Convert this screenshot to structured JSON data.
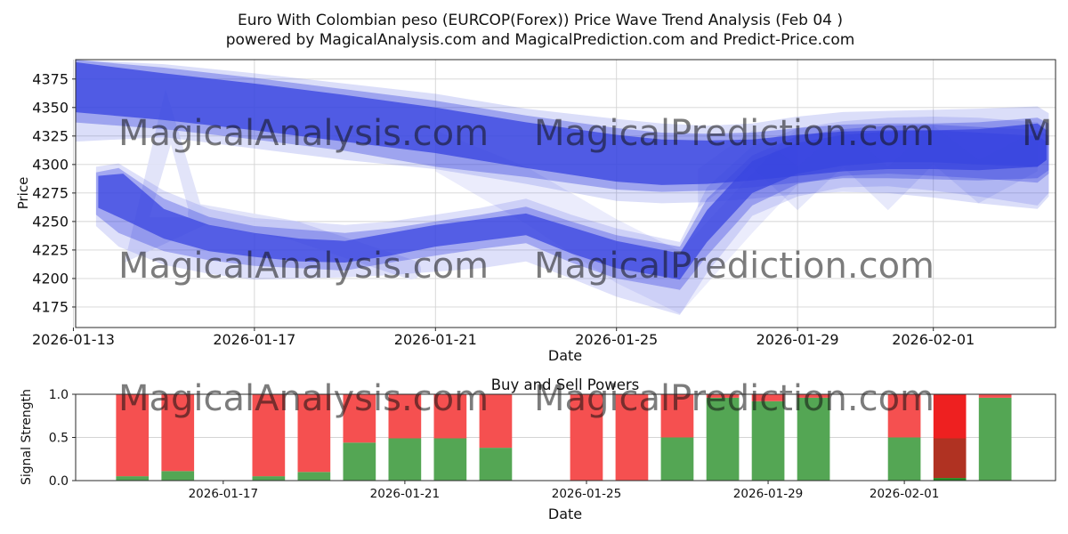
{
  "figure": {
    "background": "#ffffff"
  },
  "title": {
    "line1": "Euro With Colombian peso (EURCOP(Forex)) Price Wave Trend Analysis (Feb 04 )",
    "line2": "powered by MagicalAnalysis.com and MagicalPrediction.com and Predict-Price.com"
  },
  "watermark": {
    "color": "#cac7c7",
    "opacity": 0.55,
    "logo_color": "#dfe1f8",
    "rows": [
      {
        "row": "price_row_1",
        "items": [
          {
            "text": "MagicalAnalysis.com",
            "col": 0
          },
          {
            "text": "MagicalPrediction.com",
            "col": 1
          },
          {
            "text": "M",
            "col": 2
          }
        ]
      },
      {
        "row": "price_row_2",
        "items": [
          {
            "text": "MagicalAnalysis.com",
            "col": 0
          },
          {
            "text": "MagicalPrediction.com",
            "col": 1
          }
        ]
      },
      {
        "row": "signal_row",
        "items": [
          {
            "text": "MagicalAnalysis.com",
            "col": 0
          },
          {
            "text": "MagicalPrediction.com",
            "col": 1
          }
        ]
      }
    ]
  },
  "chart_data": [
    {
      "type": "area",
      "name": "price-wave-trend",
      "title": "",
      "xlabel": "Date",
      "ylabel": "Price",
      "start_date": "2026-01-13",
      "ylim": [
        4157,
        4392
      ],
      "xlim_days": [
        0.05,
        21.7
      ],
      "yticks": [
        4375,
        4350,
        4325,
        4300,
        4275,
        4250,
        4225,
        4200,
        4175
      ],
      "xticks": [
        "2026-01-13",
        "2026-01-17",
        "2026-01-21",
        "2026-01-25",
        "2026-01-29",
        "2026-02-01"
      ],
      "grid": "both",
      "band_color": "#3a46e0",
      "bands": [
        {
          "name": "upper-envelope",
          "opacity": 0.18,
          "points": [
            [
              0,
              4392,
              4320
            ],
            [
              2,
              4388,
              4324
            ],
            [
              4,
              4380,
              4314
            ],
            [
              6,
              4371,
              4304
            ],
            [
              8,
              4362,
              4296
            ],
            [
              10,
              4349,
              4283
            ],
            [
              12,
              4340,
              4268
            ],
            [
              13,
              4336,
              4266
            ],
            [
              14,
              4334,
              4267
            ],
            [
              15,
              4336,
              4270
            ],
            [
              16,
              4342,
              4274
            ],
            [
              17,
              4346,
              4276
            ],
            [
              18,
              4347,
              4275
            ],
            [
              19,
              4348,
              4271
            ],
            [
              20,
              4349,
              4266
            ],
            [
              21.3,
              4351,
              4261
            ],
            [
              21.55,
              4345,
              4272
            ]
          ]
        },
        {
          "name": "upper-mid",
          "opacity": 0.38,
          "points": [
            [
              0,
              4392,
              4337
            ],
            [
              2,
              4385,
              4331
            ],
            [
              4,
              4376,
              4322
            ],
            [
              6,
              4366,
              4312
            ],
            [
              8,
              4356,
              4298
            ],
            [
              10,
              4343,
              4289
            ],
            [
              12,
              4332,
              4278
            ],
            [
              13,
              4328,
              4276
            ],
            [
              14,
              4327,
              4277
            ],
            [
              15,
              4328,
              4280
            ],
            [
              16,
              4332,
              4284
            ],
            [
              17,
              4335,
              4288
            ],
            [
              18,
              4336,
              4288
            ],
            [
              19,
              4336,
              4287
            ],
            [
              20,
              4337,
              4286
            ],
            [
              21.3,
              4341,
              4288
            ],
            [
              21.55,
              4336,
              4295
            ]
          ]
        },
        {
          "name": "upper-core",
          "opacity": 0.78,
          "points": [
            [
              0,
              4390,
              4346
            ],
            [
              2,
              4380,
              4339
            ],
            [
              4,
              4371,
              4330
            ],
            [
              6,
              4361,
              4320
            ],
            [
              8,
              4350,
              4310
            ],
            [
              10,
              4337,
              4297
            ],
            [
              12,
              4326,
              4285
            ],
            [
              13,
              4322,
              4282
            ],
            [
              14,
              4321,
              4283
            ],
            [
              15,
              4322,
              4286
            ],
            [
              16,
              4326,
              4290
            ],
            [
              17,
              4329,
              4294
            ],
            [
              18,
              4330,
              4296
            ],
            [
              19,
              4330,
              4296
            ],
            [
              20,
              4331,
              4295
            ],
            [
              21.3,
              4336,
              4298
            ],
            [
              21.5,
              4330,
              4304
            ]
          ]
        },
        {
          "name": "lower-envelope",
          "opacity": 0.17,
          "points": [
            [
              0.5,
              4298,
              4246
            ],
            [
              1,
              4301,
              4228
            ],
            [
              2,
              4277,
              4212
            ],
            [
              3,
              4261,
              4204
            ],
            [
              4,
              4253,
              4199
            ],
            [
              6,
              4247,
              4201
            ],
            [
              7,
              4250,
              4203
            ],
            [
              9,
              4262,
              4209
            ],
            [
              10,
              4270,
              4215
            ],
            [
              11,
              4256,
              4200
            ],
            [
              12,
              4244,
              4184
            ],
            [
              13.4,
              4232,
              4168
            ],
            [
              14,
              4280,
              4205
            ],
            [
              15,
              4316,
              4255
            ],
            [
              16,
              4332,
              4272
            ],
            [
              17,
              4338,
              4280
            ],
            [
              18,
              4341,
              4281
            ],
            [
              19,
              4342,
              4277
            ],
            [
              20,
              4341,
              4272
            ],
            [
              21.3,
              4337,
              4264
            ],
            [
              21.55,
              4330,
              4275
            ]
          ]
        },
        {
          "name": "lower-mid",
          "opacity": 0.36,
          "points": [
            [
              0.5,
              4293,
              4256
            ],
            [
              1,
              4297,
              4240
            ],
            [
              2,
              4270,
              4224
            ],
            [
              3,
              4254,
              4216
            ],
            [
              4,
              4246,
              4211
            ],
            [
              6,
              4240,
              4207
            ],
            [
              7,
              4244,
              4214
            ],
            [
              9,
              4256,
              4226
            ],
            [
              10,
              4263,
              4231
            ],
            [
              11,
              4250,
              4214
            ],
            [
              12,
              4238,
              4200
            ],
            [
              13.4,
              4228,
              4190
            ],
            [
              14,
              4270,
              4220
            ],
            [
              15,
              4308,
              4264
            ],
            [
              16,
              4325,
              4283
            ],
            [
              17,
              4331,
              4290
            ],
            [
              18,
              4334,
              4292
            ],
            [
              19,
              4335,
              4290
            ],
            [
              20,
              4333,
              4288
            ],
            [
              21.3,
              4330,
              4284
            ],
            [
              21.55,
              4325,
              4292
            ]
          ]
        },
        {
          "name": "lower-core",
          "opacity": 0.75,
          "points": [
            [
              0.55,
              4290,
              4262
            ],
            [
              1.1,
              4292,
              4252
            ],
            [
              2,
              4261,
              4235
            ],
            [
              3,
              4247,
              4224
            ],
            [
              4,
              4240,
              4219
            ],
            [
              5,
              4235,
              4215
            ],
            [
              6,
              4233,
              4214
            ],
            [
              7,
              4240,
              4220
            ],
            [
              8,
              4247,
              4228
            ],
            [
              9,
              4252,
              4233
            ],
            [
              10,
              4257,
              4238
            ],
            [
              11,
              4245,
              4222
            ],
            [
              12,
              4233,
              4209
            ],
            [
              13.4,
              4222,
              4199
            ],
            [
              14,
              4260,
              4232
            ],
            [
              15,
              4303,
              4275
            ],
            [
              16,
              4319,
              4292
            ],
            [
              17,
              4326,
              4299
            ],
            [
              18,
              4329,
              4302
            ],
            [
              19,
              4330,
              4302
            ],
            [
              20,
              4328,
              4300
            ],
            [
              21.3,
              4325,
              4298
            ],
            [
              21.5,
              4320,
              4304
            ]
          ]
        },
        {
          "name": "fan-cross",
          "opacity": 0.1,
          "points": [
            [
              8,
              4330,
              4294
            ],
            [
              10,
              4298,
              4248
            ],
            [
              12,
              4252,
              4196
            ],
            [
              13.4,
              4224,
              4169
            ],
            [
              15,
              4292,
              4240
            ],
            [
              16,
              4332,
              4282
            ]
          ]
        },
        {
          "name": "fan-zigzag",
          "opacity": 0.12,
          "points": [
            [
              13.8,
              4296,
              4262
            ],
            [
              15,
              4330,
              4298
            ],
            [
              16,
              4298,
              4260
            ],
            [
              17,
              4332,
              4298
            ],
            [
              18,
              4298,
              4260
            ],
            [
              19,
              4334,
              4300
            ],
            [
              20,
              4304,
              4266
            ],
            [
              21.3,
              4330,
              4294
            ]
          ]
        }
      ]
    },
    {
      "type": "bar",
      "name": "buy-sell-powers",
      "title": "Buy and Sell Powers",
      "xlabel": "Date",
      "ylabel": "Signal Strength",
      "start_date": "2026-01-13",
      "ylim": [
        0,
        1
      ],
      "xlim_days": [
        0.75,
        22.33
      ],
      "yticks": [
        "0.0",
        "0.5",
        "1.0"
      ],
      "ytick_values": [
        0.0,
        0.5,
        1.0
      ],
      "xticks": [
        "2026-01-17",
        "2026-01-21",
        "2026-01-25",
        "2026-01-29",
        "2026-02-01"
      ],
      "grid_values": [
        0.5
      ],
      "bar_width_days": 0.72,
      "colors": {
        "buy": "#54a654",
        "sell": "#f55050",
        "bright_red": "#ee2020",
        "brick": "#b03222",
        "dark_green": "#1f8c1f"
      },
      "bars": [
        {
          "date": "2026-01-15",
          "buy": 0.05,
          "sell": 0.95
        },
        {
          "date": "2026-01-16",
          "buy": 0.11,
          "sell": 0.89
        },
        {
          "date": "2026-01-18",
          "buy": 0.05,
          "sell": 0.95
        },
        {
          "date": "2026-01-19",
          "buy": 0.1,
          "sell": 0.9
        },
        {
          "date": "2026-01-20",
          "buy": 0.44,
          "sell": 0.56
        },
        {
          "date": "2026-01-21",
          "buy": 0.49,
          "sell": 0.51
        },
        {
          "date": "2026-01-22",
          "buy": 0.49,
          "sell": 0.51
        },
        {
          "date": "2026-01-23",
          "buy": 0.38,
          "sell": 0.62
        },
        {
          "date": "2026-01-25",
          "buy": 0.0,
          "sell": 1.0
        },
        {
          "date": "2026-01-26",
          "buy": 0.0,
          "sell": 1.0
        },
        {
          "date": "2026-01-27",
          "buy": 0.5,
          "sell": 0.5
        },
        {
          "date": "2026-01-28",
          "buy": 0.96,
          "sell": 0.04
        },
        {
          "date": "2026-01-29",
          "buy": 0.92,
          "sell": 0.08
        },
        {
          "date": "2026-01-30",
          "buy": 0.96,
          "sell": 0.04
        },
        {
          "date": "2026-02-01",
          "buy": 0.5,
          "sell": 0.5
        },
        {
          "date": "2026-02-02",
          "segments": [
            {
              "color": "dark_green",
              "from": 0.0,
              "to": 0.03
            },
            {
              "color": "brick",
              "from": 0.03,
              "to": 0.49
            },
            {
              "color": "bright_red",
              "from": 0.49,
              "to": 1.0
            }
          ]
        },
        {
          "date": "2026-02-03",
          "buy": 0.96,
          "sell": 0.04
        }
      ]
    }
  ]
}
